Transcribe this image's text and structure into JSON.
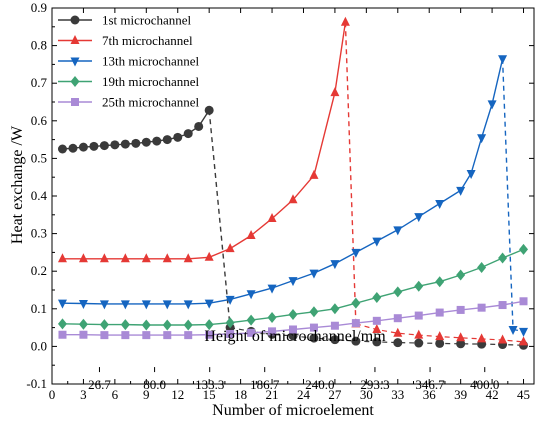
{
  "chart_data": {
    "type": "line",
    "title": "",
    "xlabel": "Number of microelement",
    "ylabel": "Heat exchange /W",
    "top_axis_label": "Height of microchannel/mm",
    "xlim": [
      0,
      46
    ],
    "ylim": [
      -0.1,
      0.9
    ],
    "x_ticks": [
      0,
      3,
      6,
      9,
      12,
      15,
      18,
      21,
      24,
      27,
      30,
      33,
      36,
      39,
      42,
      45
    ],
    "y_ticks": [
      -0.1,
      0,
      0.1,
      0.2,
      0.3,
      0.4,
      0.5,
      0.6,
      0.7,
      0.8,
      0.9
    ],
    "top_ticks": [
      {
        "x": 4.53,
        "label": "26.7"
      },
      {
        "x": 9.79,
        "label": "80.0"
      },
      {
        "x": 15.05,
        "label": "133.3"
      },
      {
        "x": 20.3,
        "label": "186.7"
      },
      {
        "x": 25.56,
        "label": "240.0"
      },
      {
        "x": 30.82,
        "label": "293.3"
      },
      {
        "x": 36.08,
        "label": "346.7"
      },
      {
        "x": 41.3,
        "label": "400.0"
      }
    ],
    "legend_position": "top-left",
    "series": [
      {
        "name": "1st  microchannel",
        "color": "#3a3a3a",
        "marker": "circle",
        "x": [
          1,
          2,
          3,
          4,
          5,
          6,
          7,
          8,
          9,
          10,
          11,
          12,
          13,
          14,
          15,
          17,
          19,
          21,
          23,
          25,
          27,
          29,
          31,
          33,
          35,
          37,
          39,
          41,
          43,
          45
        ],
        "y": [
          0.525,
          0.527,
          0.53,
          0.532,
          0.534,
          0.536,
          0.538,
          0.54,
          0.543,
          0.546,
          0.55,
          0.556,
          0.566,
          0.585,
          0.628,
          0.05,
          0.04,
          0.032,
          0.028,
          0.022,
          0.018,
          0.014,
          0.012,
          0.01,
          0.009,
          0.008,
          0.007,
          0.006,
          0.005,
          0.003
        ]
      },
      {
        "name": "7th  microchannel",
        "color": "#e53935",
        "marker": "triangle-up",
        "x": [
          1,
          3,
          5,
          7,
          9,
          11,
          13,
          15,
          17,
          19,
          21,
          23,
          25,
          27,
          28,
          29,
          31,
          33,
          35,
          37,
          39,
          41,
          43,
          45
        ],
        "y": [
          0.233,
          0.233,
          0.233,
          0.233,
          0.233,
          0.233,
          0.233,
          0.237,
          0.26,
          0.295,
          0.34,
          0.39,
          0.455,
          0.675,
          0.862,
          0.06,
          0.045,
          0.035,
          0.03,
          0.026,
          0.023,
          0.02,
          0.017,
          0.012
        ]
      },
      {
        "name": "13th microchannel",
        "color": "#1565c0",
        "marker": "triangle-down",
        "x": [
          1,
          3,
          5,
          7,
          9,
          11,
          13,
          15,
          17,
          19,
          21,
          23,
          25,
          27,
          29,
          31,
          33,
          35,
          37,
          39,
          40,
          41,
          42,
          43,
          44,
          45
        ],
        "y": [
          0.115,
          0.114,
          0.113,
          0.113,
          0.113,
          0.113,
          0.113,
          0.115,
          0.125,
          0.14,
          0.155,
          0.175,
          0.195,
          0.22,
          0.25,
          0.28,
          0.31,
          0.345,
          0.38,
          0.415,
          0.46,
          0.555,
          0.645,
          0.765,
          0.045,
          0.04
        ]
      },
      {
        "name": "19th microchannel",
        "color": "#3fa374",
        "marker": "diamond",
        "x": [
          1,
          3,
          5,
          7,
          9,
          11,
          13,
          15,
          17,
          19,
          21,
          23,
          25,
          27,
          29,
          31,
          33,
          35,
          37,
          39,
          41,
          43,
          45
        ],
        "y": [
          0.06,
          0.059,
          0.058,
          0.058,
          0.057,
          0.057,
          0.057,
          0.058,
          0.063,
          0.07,
          0.077,
          0.085,
          0.092,
          0.1,
          0.115,
          0.13,
          0.145,
          0.16,
          0.172,
          0.19,
          0.21,
          0.235,
          0.258
        ]
      },
      {
        "name": "25th microchannel",
        "color": "#a98ad6",
        "marker": "square",
        "x": [
          1,
          3,
          5,
          7,
          9,
          11,
          13,
          15,
          17,
          19,
          21,
          23,
          25,
          27,
          29,
          31,
          33,
          35,
          37,
          39,
          41,
          43,
          45
        ],
        "y": [
          0.031,
          0.031,
          0.03,
          0.03,
          0.03,
          0.03,
          0.03,
          0.031,
          0.033,
          0.036,
          0.04,
          0.045,
          0.05,
          0.055,
          0.062,
          0.068,
          0.075,
          0.082,
          0.09,
          0.097,
          0.103,
          0.11,
          0.12
        ]
      }
    ]
  }
}
